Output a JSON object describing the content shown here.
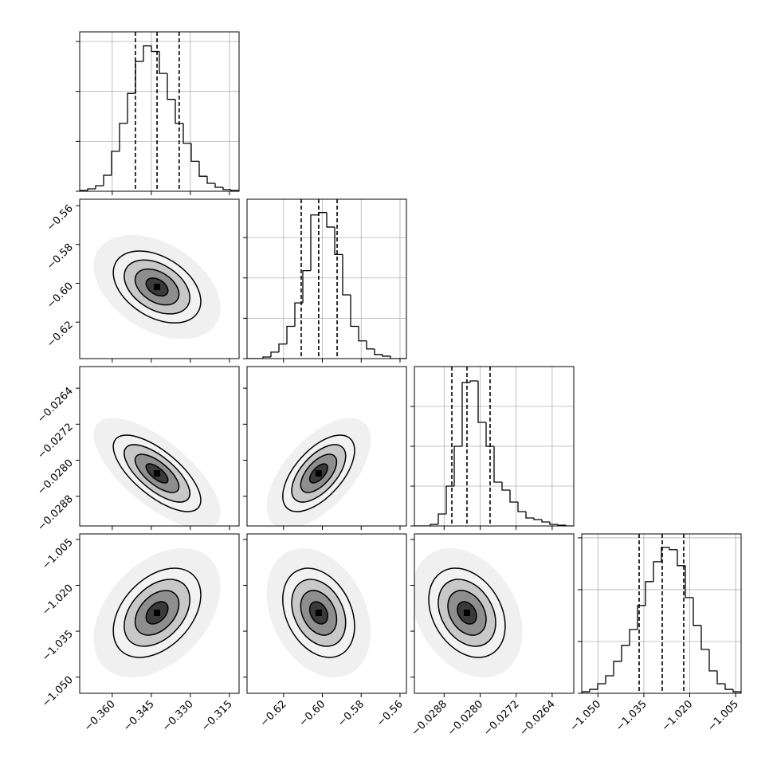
{
  "chart_data": {
    "type": "corner",
    "grid": true,
    "color": "#000000",
    "levels": [
      0.5,
      1,
      1.5,
      2
    ],
    "params": [
      {
        "lim": [
          -0.3725,
          -0.3113
        ],
        "ticks": [
          {
            "value": -0.36,
            "label": "−0.360"
          },
          {
            "value": -0.345,
            "label": "−0.345"
          },
          {
            "value": -0.33,
            "label": "−0.330"
          },
          {
            "value": -0.315,
            "label": "−0.315"
          }
        ],
        "bins": [
          -0.3725,
          -0.36944,
          -0.36638,
          -0.36332,
          -0.36026,
          -0.3572,
          -0.35414,
          -0.35108,
          -0.34802,
          -0.34496,
          -0.3419,
          -0.33884,
          -0.33578,
          -0.33272,
          -0.32966,
          -0.3266,
          -0.32354,
          -0.32048,
          -0.31742,
          -0.31436,
          -0.3113
        ],
        "counts": [
          8,
          24,
          56,
          160,
          400,
          680,
          980,
          1300,
          1456,
          1400,
          1180,
          920,
          680,
          480,
          300,
          150,
          80,
          40,
          16,
          8
        ],
        "hist_ylim": [
          0,
          1596
        ],
        "hist_yticks": [
          0,
          500,
          1000,
          1500
        ],
        "quantiles": [
          -0.3511,
          -0.3428,
          -0.3343
        ]
      },
      {
        "lim": [
          -0.6388,
          -0.5567
        ],
        "ticks": [
          {
            "value": -0.62,
            "label": "−0.62"
          },
          {
            "value": -0.6,
            "label": "−0.60"
          },
          {
            "value": -0.58,
            "label": "−0.58"
          },
          {
            "value": -0.56,
            "label": "−0.56"
          }
        ],
        "bins": [
          -0.6388,
          -0.634695,
          -0.63059,
          -0.626485,
          -0.62238,
          -0.618275,
          -0.61417,
          -0.610065,
          -0.60596,
          -0.601855,
          -0.59775,
          -0.593645,
          -0.58954,
          -0.585435,
          -0.58133,
          -0.577225,
          -0.57312,
          -0.569015,
          -0.56491,
          -0.560805,
          -0.5567
        ],
        "counts": [
          0,
          0,
          20,
          80,
          180,
          400,
          690,
          1090,
          1780,
          1810,
          1630,
          1290,
          790,
          400,
          220,
          120,
          50,
          30,
          0,
          0
        ],
        "hist_ylim": [
          0,
          1975
        ],
        "hist_yticks": [
          0,
          500,
          1000,
          1500
        ],
        "quantiles": [
          -0.6109,
          -0.6019,
          -0.5924
        ]
      },
      {
        "lim": [
          -0.02946,
          -0.02592
        ],
        "ticks": [
          {
            "value": -0.0288,
            "label": "−0.0288"
          },
          {
            "value": -0.028,
            "label": "−0.0280"
          },
          {
            "value": -0.0272,
            "label": "−0.0272"
          },
          {
            "value": -0.0264,
            "label": "−0.0264"
          }
        ],
        "bins": [
          -0.02946,
          -0.029283,
          -0.029106,
          -0.028929,
          -0.028752,
          -0.028575,
          -0.028398,
          -0.028221,
          -0.028044,
          -0.027867,
          -0.02769,
          -0.027513,
          -0.027336,
          -0.027159,
          -0.026982,
          -0.026805,
          -0.026628,
          -0.026451,
          -0.026274,
          -0.026097,
          -0.02592
        ],
        "counts": [
          0,
          0,
          20,
          150,
          500,
          1000,
          1800,
          1820,
          1300,
          1000,
          550,
          450,
          300,
          180,
          100,
          80,
          50,
          20,
          10,
          0
        ],
        "hist_ylim": [
          0,
          2000
        ],
        "hist_yticks": [
          0,
          500,
          1000,
          1500
        ],
        "quantiles": [
          -0.028628,
          -0.028292,
          -0.027779
        ]
      },
      {
        "lim": [
          -1.0553,
          -1.0032
        ],
        "ticks": [
          {
            "value": -1.05,
            "label": "−1.050"
          },
          {
            "value": -1.035,
            "label": "−1.035"
          },
          {
            "value": -1.02,
            "label": "−1.020"
          },
          {
            "value": -1.005,
            "label": "−1.005"
          }
        ],
        "bins": [
          -1.0553,
          -1.052695,
          -1.05009,
          -1.047485,
          -1.04488,
          -1.042275,
          -1.03967,
          -1.037065,
          -1.03446,
          -1.031855,
          -1.02925,
          -1.026645,
          -1.02404,
          -1.021435,
          -1.01883,
          -1.016225,
          -1.01362,
          -1.011015,
          -1.00841,
          -1.005805,
          -1.0032
        ],
        "counts": [
          15,
          38,
          92,
          169,
          308,
          462,
          616,
          847,
          1078,
          1270,
          1408,
          1386,
          1232,
          924,
          655,
          424,
          216,
          92,
          38,
          15
        ],
        "hist_ylim": [
          0,
          1538
        ],
        "hist_yticks": [
          0,
          500,
          1000,
          1500
        ],
        "quantiles": [
          -1.03654,
          -1.02899,
          -1.02196
        ]
      }
    ],
    "pairs": [
      {
        "x": 0,
        "y": 1,
        "rho": -0.4
      },
      {
        "x": 0,
        "y": 2,
        "rho": -0.7
      },
      {
        "x": 1,
        "y": 2,
        "rho": 0.6
      },
      {
        "x": 0,
        "y": 3,
        "rho": 0.4
      },
      {
        "x": 1,
        "y": 3,
        "rho": -0.3
      },
      {
        "x": 2,
        "y": 3,
        "rho": -0.3
      }
    ]
  }
}
